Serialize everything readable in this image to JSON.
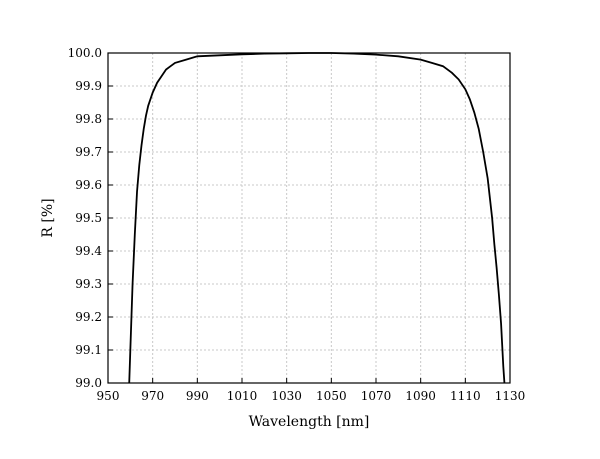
{
  "chart_data": {
    "type": "line",
    "title": "",
    "xlabel": "Wavelength [nm]",
    "ylabel": "R [%]",
    "xlim": [
      950,
      1130
    ],
    "ylim": [
      99.0,
      100.0
    ],
    "xticks": [
      950,
      970,
      990,
      1010,
      1030,
      1050,
      1070,
      1090,
      1110,
      1130
    ],
    "yticks": [
      "99.0",
      "99.1",
      "99.2",
      "99.3",
      "99.4",
      "99.5",
      "99.6",
      "99.7",
      "99.8",
      "99.9",
      "100.0"
    ],
    "grid": true,
    "legend": "none",
    "line_color": "#000000",
    "series": [
      {
        "x": [
          959.5,
          960,
          961,
          962,
          963,
          964,
          965,
          966,
          967,
          968,
          970,
          972,
          974,
          976,
          978,
          980,
          985,
          990,
          1000,
          1010,
          1020,
          1030,
          1040,
          1050,
          1060,
          1070,
          1080,
          1090,
          1095,
          1100,
          1104,
          1107,
          1110,
          1112,
          1114,
          1116,
          1118,
          1120,
          1122,
          1123,
          1124,
          1125,
          1126,
          1127,
          1127.5
        ],
        "y": [
          99.0,
          99.1,
          99.3,
          99.45,
          99.58,
          99.66,
          99.72,
          99.77,
          99.81,
          99.84,
          99.88,
          99.91,
          99.93,
          99.95,
          99.96,
          99.97,
          99.98,
          99.99,
          99.993,
          99.996,
          99.998,
          99.999,
          100.0,
          100.0,
          99.998,
          99.995,
          99.99,
          99.98,
          99.97,
          99.96,
          99.94,
          99.92,
          99.89,
          99.86,
          99.82,
          99.77,
          99.7,
          99.62,
          99.5,
          99.42,
          99.35,
          99.27,
          99.18,
          99.05,
          99.0
        ]
      }
    ]
  }
}
